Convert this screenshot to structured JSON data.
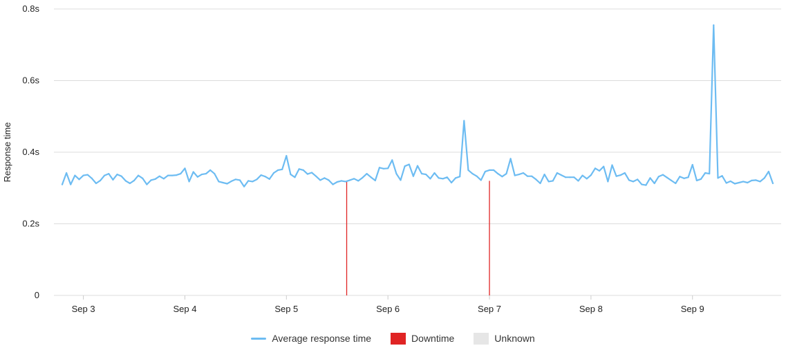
{
  "chart_data": {
    "type": "line",
    "title": "",
    "xlabel": "",
    "ylabel": "Response time",
    "ylim": [
      0,
      0.8
    ],
    "xlim": [
      "2023-09-02 19:00",
      "2023-09-09 19:00"
    ],
    "y_ticks": [
      {
        "value": 0,
        "label": "0"
      },
      {
        "value": 0.2,
        "label": "0.2s"
      },
      {
        "value": 0.4,
        "label": "0.4s"
      },
      {
        "value": 0.6,
        "label": "0.6s"
      },
      {
        "value": 0.8,
        "label": "0.8s"
      }
    ],
    "x_ticks": [
      {
        "value": "2023-09-03",
        "label": "Sep 3"
      },
      {
        "value": "2023-09-04",
        "label": "Sep 4"
      },
      {
        "value": "2023-09-05",
        "label": "Sep 5"
      },
      {
        "value": "2023-09-06",
        "label": "Sep 6"
      },
      {
        "value": "2023-09-07",
        "label": "Sep 7"
      },
      {
        "value": "2023-09-08",
        "label": "Sep 8"
      },
      {
        "value": "2023-09-09",
        "label": "Sep 9"
      }
    ],
    "grid": true,
    "legend_position": "bottom",
    "series": [
      {
        "name": "Average response time",
        "color": "#6dbcf2",
        "x": [
          "2023-09-02 19:00",
          "2023-09-02 20:00",
          "2023-09-02 21:00",
          "2023-09-02 22:00",
          "2023-09-02 23:00",
          "2023-09-03 00:00",
          "2023-09-03 01:00",
          "2023-09-03 02:00",
          "2023-09-03 03:00",
          "2023-09-03 04:00",
          "2023-09-03 05:00",
          "2023-09-03 06:00",
          "2023-09-03 07:00",
          "2023-09-03 08:00",
          "2023-09-03 09:00",
          "2023-09-03 10:00",
          "2023-09-03 11:00",
          "2023-09-03 12:00",
          "2023-09-03 13:00",
          "2023-09-03 14:00",
          "2023-09-03 15:00",
          "2023-09-03 16:00",
          "2023-09-03 17:00",
          "2023-09-03 18:00",
          "2023-09-03 19:00",
          "2023-09-03 20:00",
          "2023-09-03 21:00",
          "2023-09-03 22:00",
          "2023-09-03 23:00",
          "2023-09-04 00:00",
          "2023-09-04 01:00",
          "2023-09-04 02:00",
          "2023-09-04 03:00",
          "2023-09-04 04:00",
          "2023-09-04 05:00",
          "2023-09-04 06:00",
          "2023-09-04 07:00",
          "2023-09-04 08:00",
          "2023-09-04 09:00",
          "2023-09-04 10:00",
          "2023-09-04 11:00",
          "2023-09-04 12:00",
          "2023-09-04 13:00",
          "2023-09-04 14:00",
          "2023-09-04 15:00",
          "2023-09-04 16:00",
          "2023-09-04 17:00",
          "2023-09-04 18:00",
          "2023-09-04 19:00",
          "2023-09-04 20:00",
          "2023-09-04 21:00",
          "2023-09-04 22:00",
          "2023-09-04 23:00",
          "2023-09-05 00:00",
          "2023-09-05 01:00",
          "2023-09-05 02:00",
          "2023-09-05 03:00",
          "2023-09-05 04:00",
          "2023-09-05 05:00",
          "2023-09-05 06:00",
          "2023-09-05 07:00",
          "2023-09-05 08:00",
          "2023-09-05 09:00",
          "2023-09-05 10:00",
          "2023-09-05 11:00",
          "2023-09-05 12:00",
          "2023-09-05 13:00",
          "2023-09-05 14:00",
          "2023-09-05 15:00",
          "2023-09-05 16:00",
          "2023-09-05 17:00",
          "2023-09-05 18:00",
          "2023-09-05 19:00",
          "2023-09-05 20:00",
          "2023-09-05 21:00",
          "2023-09-05 22:00",
          "2023-09-05 23:00",
          "2023-09-06 00:00",
          "2023-09-06 01:00",
          "2023-09-06 02:00",
          "2023-09-06 03:00",
          "2023-09-06 04:00",
          "2023-09-06 05:00",
          "2023-09-06 06:00",
          "2023-09-06 07:00",
          "2023-09-06 08:00",
          "2023-09-06 09:00",
          "2023-09-06 10:00",
          "2023-09-06 11:00",
          "2023-09-06 12:00",
          "2023-09-06 13:00",
          "2023-09-06 14:00",
          "2023-09-06 15:00",
          "2023-09-06 16:00",
          "2023-09-06 17:00",
          "2023-09-06 18:00",
          "2023-09-06 19:00",
          "2023-09-06 20:00",
          "2023-09-06 21:00",
          "2023-09-06 22:00",
          "2023-09-06 23:00",
          "2023-09-07 00:00",
          "2023-09-07 01:00",
          "2023-09-07 02:00",
          "2023-09-07 03:00",
          "2023-09-07 04:00",
          "2023-09-07 05:00",
          "2023-09-07 06:00",
          "2023-09-07 07:00",
          "2023-09-07 08:00",
          "2023-09-07 09:00",
          "2023-09-07 10:00",
          "2023-09-07 11:00",
          "2023-09-07 12:00",
          "2023-09-07 13:00",
          "2023-09-07 14:00",
          "2023-09-07 15:00",
          "2023-09-07 16:00",
          "2023-09-07 17:00",
          "2023-09-07 18:00",
          "2023-09-07 19:00",
          "2023-09-07 20:00",
          "2023-09-07 21:00",
          "2023-09-07 22:00",
          "2023-09-07 23:00",
          "2023-09-08 00:00",
          "2023-09-08 01:00",
          "2023-09-08 02:00",
          "2023-09-08 03:00",
          "2023-09-08 04:00",
          "2023-09-08 05:00",
          "2023-09-08 06:00",
          "2023-09-08 07:00",
          "2023-09-08 08:00",
          "2023-09-08 09:00",
          "2023-09-08 10:00",
          "2023-09-08 11:00",
          "2023-09-08 12:00",
          "2023-09-08 13:00",
          "2023-09-08 14:00",
          "2023-09-08 15:00",
          "2023-09-08 16:00",
          "2023-09-08 17:00",
          "2023-09-08 18:00",
          "2023-09-08 19:00",
          "2023-09-08 20:00",
          "2023-09-08 21:00",
          "2023-09-08 22:00",
          "2023-09-08 23:00",
          "2023-09-09 00:00",
          "2023-09-09 01:00",
          "2023-09-09 02:00",
          "2023-09-09 03:00",
          "2023-09-09 04:00",
          "2023-09-09 05:00",
          "2023-09-09 06:00",
          "2023-09-09 07:00",
          "2023-09-09 08:00",
          "2023-09-09 09:00",
          "2023-09-09 10:00",
          "2023-09-09 11:00",
          "2023-09-09 12:00",
          "2023-09-09 13:00",
          "2023-09-09 14:00",
          "2023-09-09 15:00",
          "2023-09-09 16:00",
          "2023-09-09 17:00",
          "2023-09-09 18:00",
          "2023-09-09 19:00"
        ],
        "values": [
          0.31,
          0.342,
          0.31,
          0.335,
          0.324,
          0.335,
          0.337,
          0.327,
          0.313,
          0.321,
          0.335,
          0.34,
          0.323,
          0.338,
          0.333,
          0.32,
          0.313,
          0.321,
          0.335,
          0.327,
          0.31,
          0.322,
          0.325,
          0.333,
          0.326,
          0.335,
          0.335,
          0.336,
          0.34,
          0.355,
          0.318,
          0.345,
          0.331,
          0.338,
          0.34,
          0.35,
          0.34,
          0.318,
          0.315,
          0.312,
          0.319,
          0.324,
          0.322,
          0.304,
          0.32,
          0.318,
          0.324,
          0.336,
          0.332,
          0.325,
          0.342,
          0.35,
          0.352,
          0.39,
          0.338,
          0.33,
          0.353,
          0.35,
          0.339,
          0.343,
          0.333,
          0.322,
          0.328,
          0.322,
          0.31,
          0.317,
          0.32,
          0.318,
          0.322,
          0.326,
          0.32,
          0.329,
          0.34,
          0.33,
          0.321,
          0.357,
          0.354,
          0.355,
          0.378,
          0.34,
          0.322,
          0.361,
          0.366,
          0.333,
          0.362,
          0.34,
          0.338,
          0.326,
          0.342,
          0.328,
          0.326,
          0.33,
          0.315,
          0.328,
          0.332,
          0.488,
          0.35,
          0.34,
          0.333,
          0.322,
          0.346,
          0.35,
          0.35,
          0.34,
          0.332,
          0.34,
          0.382,
          0.335,
          0.338,
          0.342,
          0.333,
          0.333,
          0.324,
          0.313,
          0.338,
          0.318,
          0.32,
          0.342,
          0.336,
          0.33,
          0.33,
          0.33,
          0.32,
          0.335,
          0.326,
          0.336,
          0.355,
          0.348,
          0.36,
          0.318,
          0.364,
          0.333,
          0.336,
          0.342,
          0.322,
          0.318,
          0.324,
          0.31,
          0.308,
          0.328,
          0.313,
          0.332,
          0.337,
          0.329,
          0.321,
          0.313,
          0.332,
          0.327,
          0.33,
          0.365,
          0.321,
          0.325,
          0.342,
          0.34,
          0.755,
          0.328,
          0.334,
          0.314,
          0.319,
          0.312,
          0.315,
          0.318,
          0.315,
          0.321,
          0.322,
          0.318,
          0.328,
          0.346,
          0.313
        ]
      },
      {
        "name": "Downtime",
        "color": "#e02424",
        "type": "event",
        "x": [
          "2023-09-05 14:15",
          "2023-09-07 00:00"
        ]
      },
      {
        "name": "Unknown",
        "color": "#e6e6e6",
        "type": "event",
        "x": []
      }
    ]
  }
}
